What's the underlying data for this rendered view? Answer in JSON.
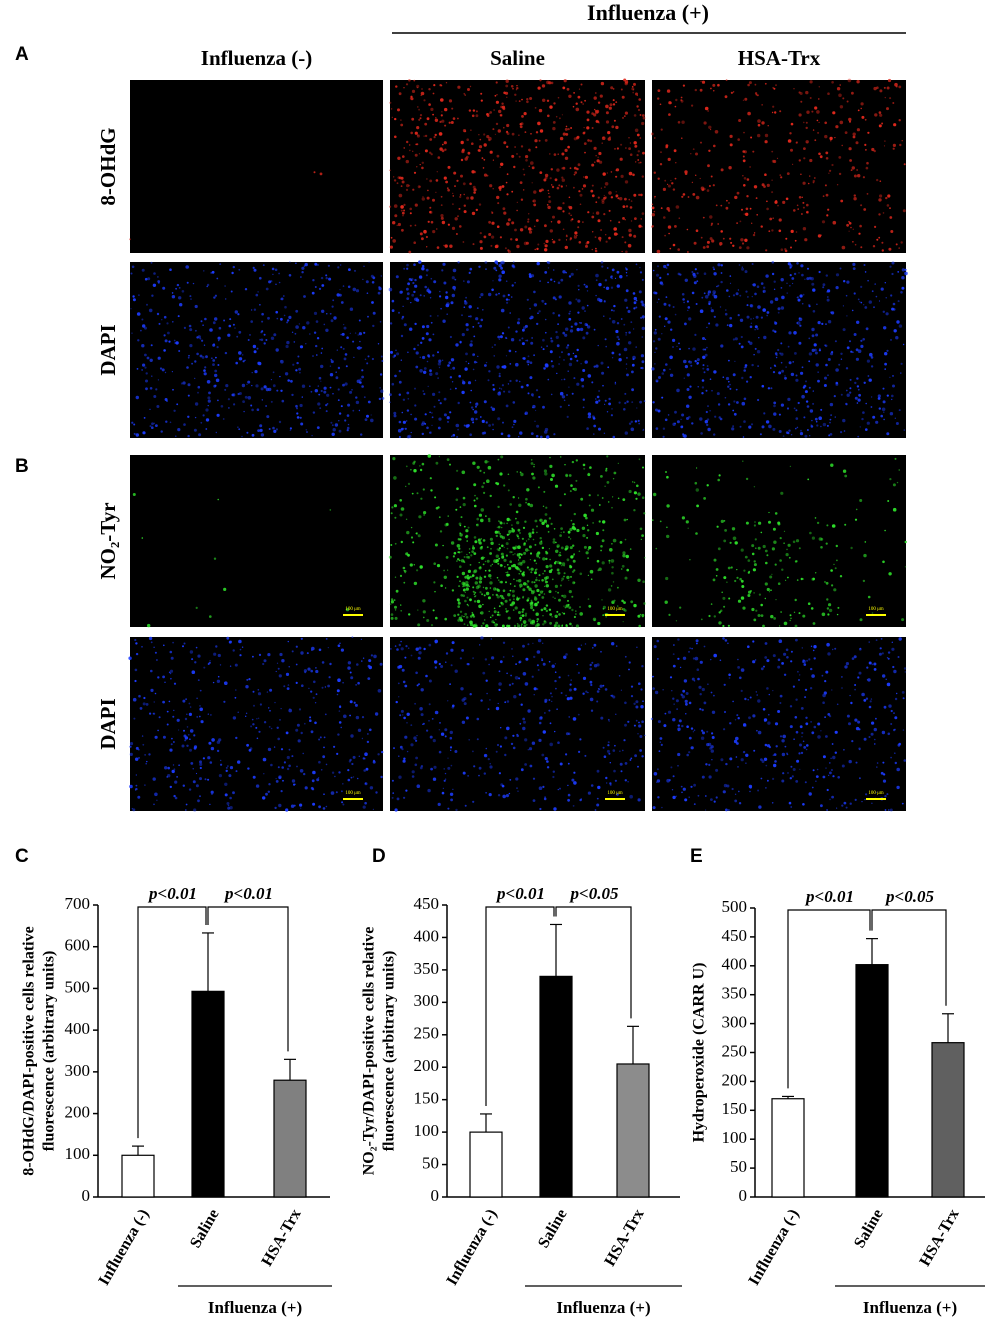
{
  "figure": {
    "panel_labels": [
      "A",
      "B"
    ],
    "group_header": "Influenza (+)",
    "columns": [
      "Influenza (-)",
      "Saline",
      "HSA-Trx"
    ],
    "rows": [
      "8-OHdG",
      "DAPI",
      "NO₂-Tyr",
      "DAPI"
    ],
    "scale_bar": "100 μm"
  },
  "chart_data": [
    {
      "type": "bar",
      "panel": "C",
      "y_label": [
        "8-OHdG/DAPI-positive cells relative",
        "fluorescence (arbitrary units)"
      ],
      "categories": [
        "Influenza (-)",
        "Saline",
        "HSA-Trx"
      ],
      "values": [
        100,
        493,
        280
      ],
      "errors": [
        22,
        140,
        50
      ],
      "colors": [
        "#ffffff",
        "#000000",
        "#808080"
      ],
      "ylim": [
        0,
        700
      ],
      "yticks": [
        0,
        100,
        200,
        300,
        400,
        500,
        600,
        700
      ],
      "annotations": [
        "p<0.01",
        "p<0.01"
      ],
      "group_label": "Influenza (+)"
    },
    {
      "type": "bar",
      "panel": "D",
      "y_label": [
        "NO₂-Tyr/DAPI-positive cells relative",
        "fluorescence (arbitrary units)"
      ],
      "categories": [
        "Influenza (-)",
        "Saline",
        "HSA-Trx"
      ],
      "values": [
        100,
        340,
        205
      ],
      "errors": [
        28,
        80,
        58
      ],
      "colors": [
        "#ffffff",
        "#000000",
        "#8c8c8c"
      ],
      "ylim": [
        0,
        450
      ],
      "yticks": [
        0,
        50,
        100,
        150,
        200,
        250,
        300,
        350,
        400,
        450
      ],
      "annotations": [
        "p<0.01",
        "p<0.05"
      ],
      "group_label": "Influenza (+)"
    },
    {
      "type": "bar",
      "panel": "E",
      "y_label": [
        "Hydroperoxide (CARR U)"
      ],
      "categories": [
        "Influenza (-)",
        "Saline",
        "HSA-Trx"
      ],
      "values": [
        170,
        402,
        267
      ],
      "errors": [
        4,
        45,
        50
      ],
      "colors": [
        "#ffffff",
        "#000000",
        "#606060"
      ],
      "ylim": [
        0,
        500
      ],
      "yticks": [
        0,
        50,
        100,
        150,
        200,
        250,
        300,
        350,
        400,
        450,
        500
      ],
      "annotations": [
        "p<0.01",
        "p<0.05"
      ],
      "group_label": "Influenza (+)"
    }
  ]
}
